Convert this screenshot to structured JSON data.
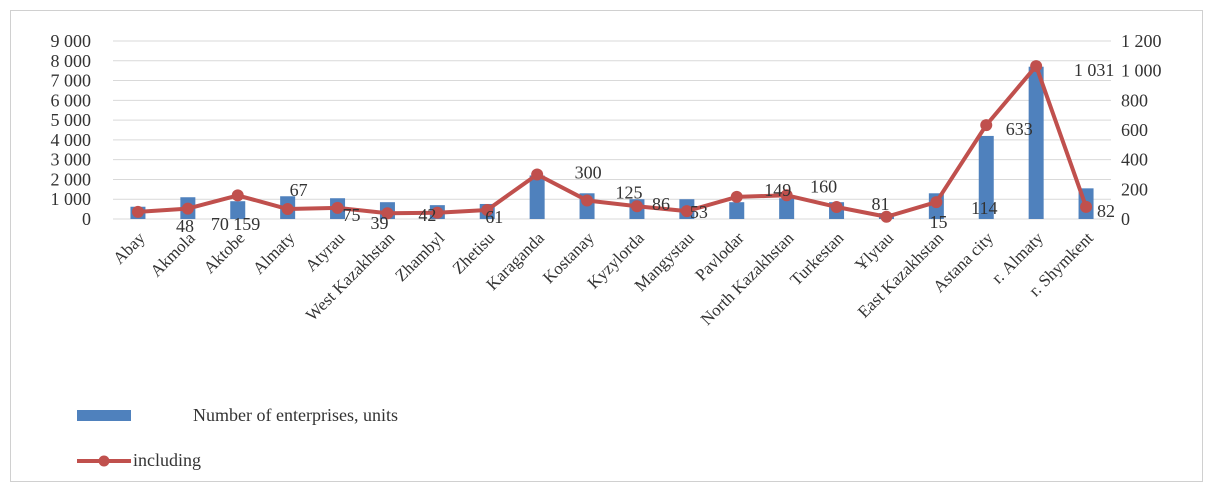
{
  "chart_data": {
    "type": "bar",
    "categories": [
      "Abay",
      "Akmola",
      "Aktobe",
      "Almaty",
      "Atyrau",
      "West Kazakhstan",
      "Zhambyl",
      "Zhetisu",
      "Karaganda",
      "Kostanay",
      "Kyzylorda",
      "Mangystau",
      "Pavlodar",
      "North Kazakhstan",
      "Turkestan",
      "Ulytau",
      "East Kazakhstan",
      "Astana city",
      "г. Almaty",
      "г. Shymkent"
    ],
    "category_labels": [
      "Abay",
      "Akmola",
      "Aktobe",
      "Almaty",
      "Atyrau",
      "West Kazakhstan",
      "Zhambyl",
      "Zhetisu",
      "Karaganda",
      "Kostanay",
      "Kyzylorda",
      "Mangystau",
      "Pavlodar",
      "North Kazakhstan",
      "Turkestan",
      "Ұlytau",
      "East Kazakhstan",
      "Astana city",
      "г. Almaty",
      "г. Shymkent"
    ],
    "series": [
      {
        "name": "Number of enterprises, units",
        "type": "bar",
        "axis": "left",
        "color": "#4f81bd",
        "values": [
          620,
          1100,
          900,
          1150,
          1050,
          850,
          700,
          760,
          2200,
          1300,
          1000,
          1000,
          850,
          1050,
          850,
          300,
          1300,
          4200,
          7700,
          1550
        ]
      },
      {
        "name": "including",
        "type": "line",
        "axis": "right",
        "color": "#c0504d",
        "values": [
          48,
          70,
          159,
          67,
          75,
          39,
          42,
          61,
          300,
          125,
          86,
          53,
          149,
          160,
          81,
          15,
          114,
          633,
          1031,
          82
        ]
      }
    ],
    "data_labels": [
      "48",
      "70",
      "159",
      "67",
      "75",
      "39",
      "42",
      "61",
      "300",
      "125",
      "86",
      "53",
      "149",
      "160",
      "81",
      "15",
      "114",
      "633",
      "1 031",
      "82"
    ],
    "left_axis": {
      "min": 0,
      "max": 9000,
      "step": 1000,
      "tick_labels": [
        "0",
        "1 000",
        "2 000",
        "3 000",
        "4 000",
        "5 000",
        "6 000",
        "7 000",
        "8 000",
        "9 000"
      ]
    },
    "right_axis": {
      "min": 0,
      "max": 1200,
      "step": 200,
      "tick_labels": [
        "0",
        "200",
        "400",
        "600",
        "800",
        "1 000",
        "1 200"
      ]
    },
    "grid": true,
    "legend_position": "bottom-left",
    "title": "",
    "xlabel": "",
    "ylabel": ""
  }
}
